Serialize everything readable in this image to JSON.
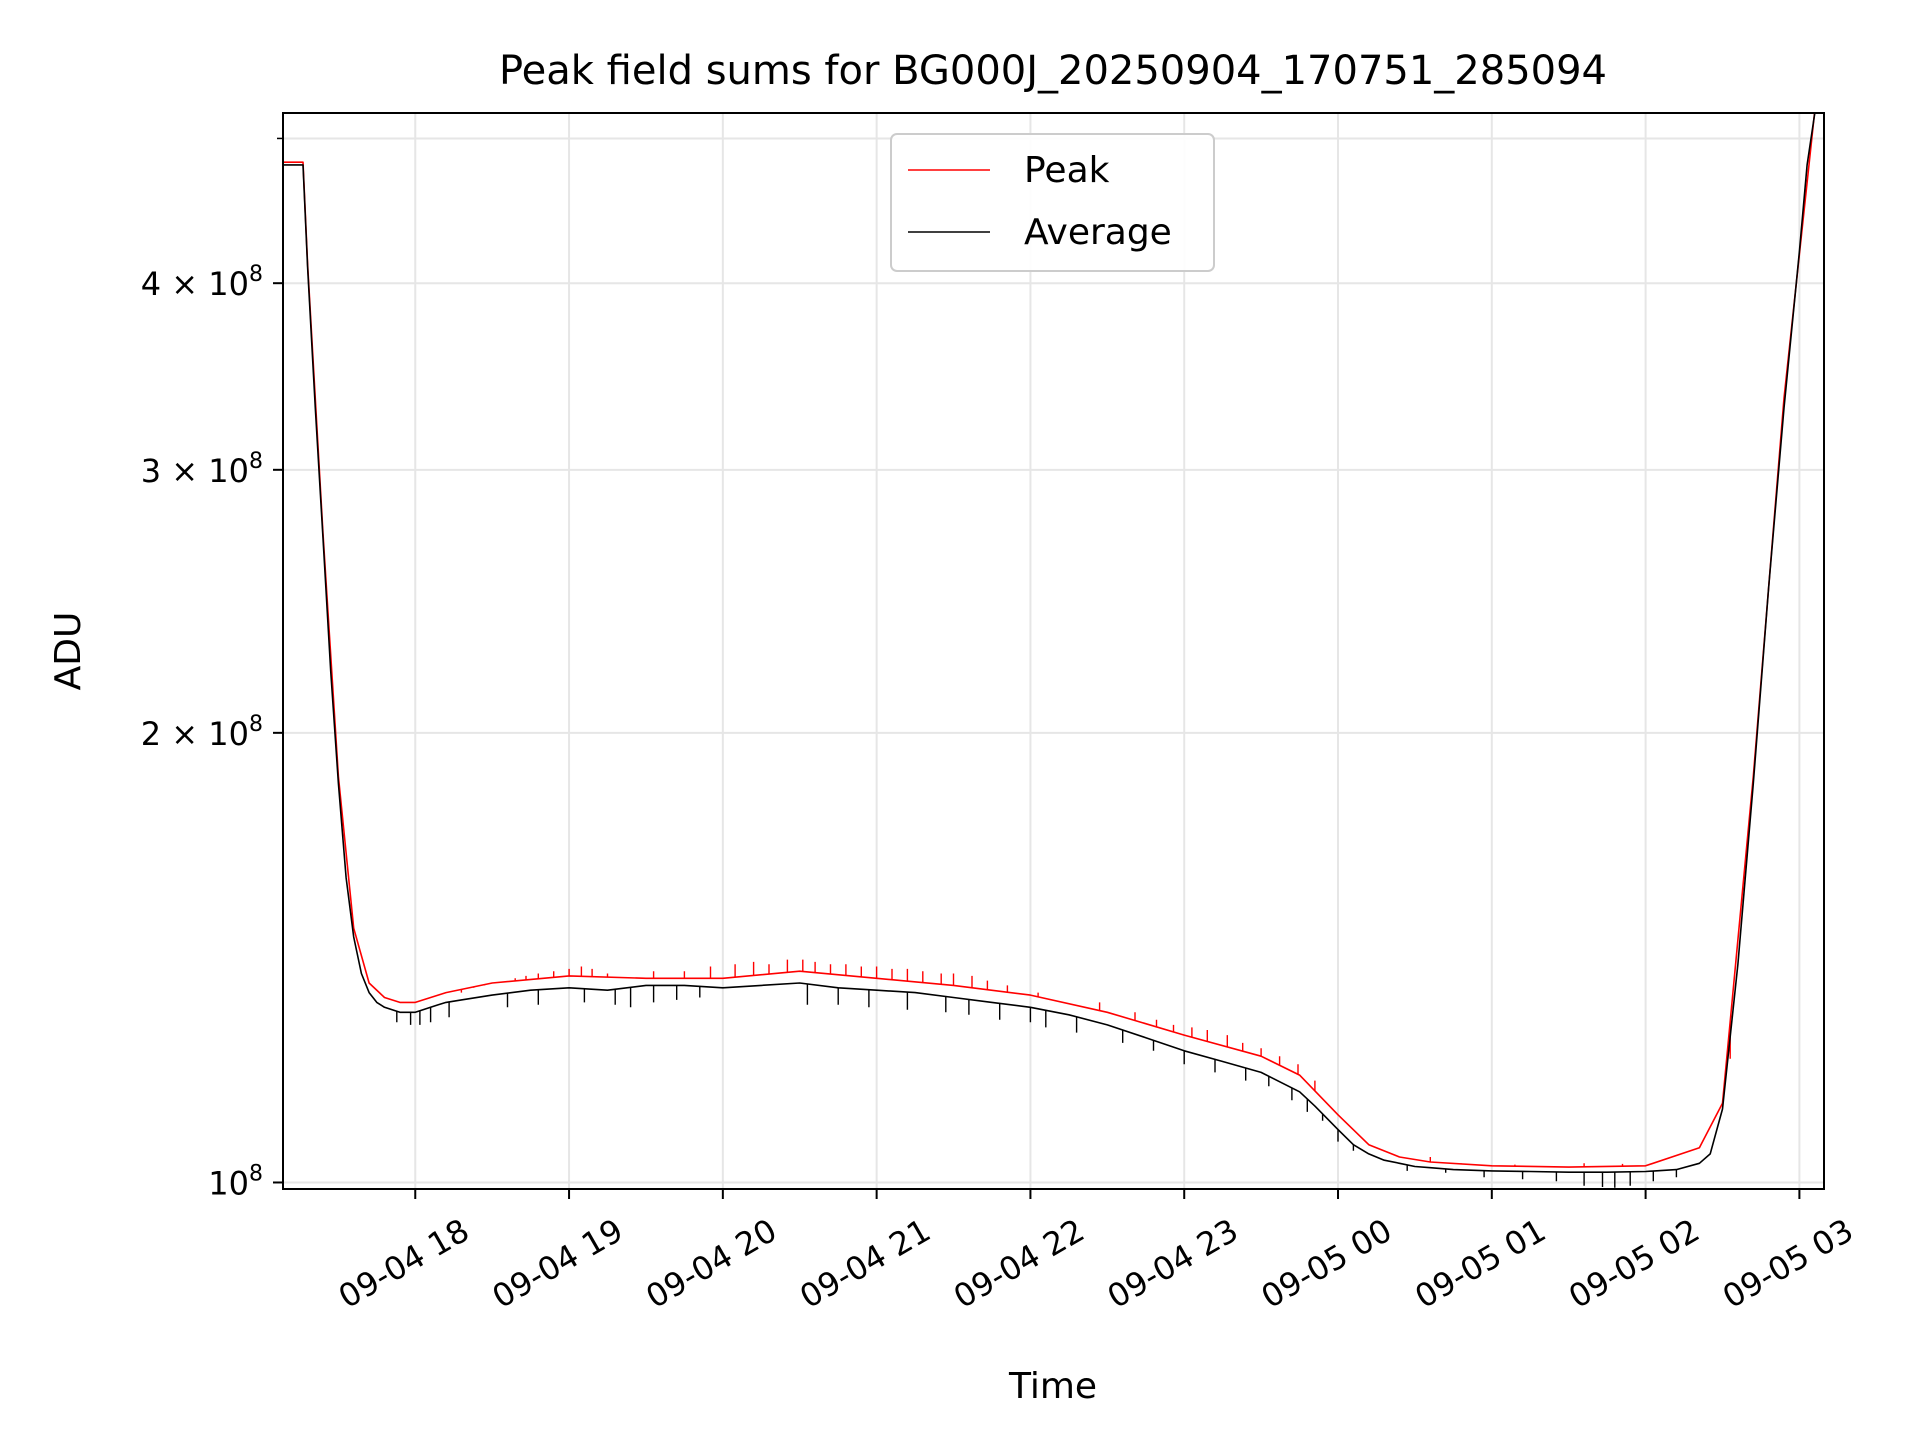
{
  "chart_data": {
    "type": "line",
    "title": "Peak field sums for BG000J_20250904_170751_285094",
    "xlabel": "Time",
    "ylabel": "ADU",
    "yscale": "log",
    "grid": true,
    "legend_placement": "upper-center",
    "xlim_hours": [
      17.14,
      27.16
    ],
    "ylim": [
      99000000,
      520000000
    ],
    "x_ticks": [
      {
        "hour": 18,
        "label": "09-04 18"
      },
      {
        "hour": 19,
        "label": "09-04 19"
      },
      {
        "hour": 20,
        "label": "09-04 20"
      },
      {
        "hour": 21,
        "label": "09-04 21"
      },
      {
        "hour": 22,
        "label": "09-04 22"
      },
      {
        "hour": 23,
        "label": "09-04 23"
      },
      {
        "hour": 24,
        "label": "09-05 00"
      },
      {
        "hour": 25,
        "label": "09-05 01"
      },
      {
        "hour": 26,
        "label": "09-05 02"
      },
      {
        "hour": 27,
        "label": "09-05 03"
      }
    ],
    "y_ticks": [
      {
        "value": 100000000,
        "base": "10",
        "exp": "8"
      },
      {
        "value": 200000000,
        "base": "2 × 10",
        "exp": "8"
      },
      {
        "value": 300000000,
        "base": "3 × 10",
        "exp": "8"
      },
      {
        "value": 400000000,
        "base": "4 × 10",
        "exp": "8"
      }
    ],
    "y_minor_ticks": [
      500000000
    ],
    "series": [
      {
        "name": "Peak",
        "color": "#ff0000"
      },
      {
        "name": "Average",
        "color": "#000000"
      }
    ],
    "average_x_hours": [
      17.14,
      17.2,
      17.27,
      17.3,
      17.35,
      17.4,
      17.45,
      17.5,
      17.55,
      17.6,
      17.65,
      17.7,
      17.75,
      17.8,
      17.85,
      17.9,
      17.95,
      18.0,
      18.05,
      18.1,
      18.15,
      18.2,
      18.3,
      18.5,
      18.75,
      19.0,
      19.25,
      19.5,
      19.75,
      20.0,
      20.25,
      20.5,
      20.75,
      21.0,
      21.25,
      21.5,
      21.75,
      22.0,
      22.25,
      22.5,
      22.75,
      23.0,
      23.25,
      23.5,
      23.75,
      23.85,
      24.0,
      24.1,
      24.2,
      24.3,
      24.4,
      24.5,
      24.6,
      24.75,
      25.0,
      25.25,
      25.5,
      25.75,
      26.0,
      26.2,
      26.35,
      26.42,
      26.5,
      26.6,
      26.7,
      26.8,
      26.9,
      27.0,
      27.05,
      27.1,
      27.16
    ],
    "average_values": [
      480000000,
      480000000,
      480000000,
      410000000,
      330000000,
      270000000,
      220000000,
      185000000,
      160000000,
      146000000,
      138000000,
      134000000,
      132000000,
      131000000,
      130500000,
      130000000,
      130000000,
      130000000,
      130500000,
      131000000,
      131500000,
      132000000,
      132500000,
      133500000,
      134500000,
      135000000,
      134500000,
      135500000,
      135500000,
      135000000,
      135500000,
      136000000,
      135000000,
      134500000,
      134000000,
      133000000,
      132000000,
      131000000,
      129500000,
      127500000,
      125000000,
      122500000,
      120500000,
      118500000,
      115000000,
      112500000,
      108500000,
      106000000,
      104500000,
      103500000,
      103000000,
      102500000,
      102300000,
      102000000,
      101800000,
      101700000,
      101600000,
      101600000,
      101700000,
      102000000,
      103000000,
      104500000,
      112000000,
      140000000,
      185000000,
      250000000,
      330000000,
      420000000,
      480000000,
      520000000,
      520000000
    ],
    "peak_x_hours": [
      17.14,
      17.27,
      17.3,
      17.4,
      17.5,
      17.6,
      17.7,
      17.8,
      17.9,
      18.0,
      18.2,
      18.5,
      19.0,
      19.5,
      20.0,
      20.5,
      21.0,
      21.5,
      22.0,
      22.5,
      23.0,
      23.5,
      23.75,
      24.0,
      24.2,
      24.4,
      24.6,
      25.0,
      25.5,
      26.0,
      26.35,
      26.5,
      26.7,
      26.9,
      27.1,
      27.16
    ],
    "peak_values": [
      482000000,
      482000000,
      412000000,
      272000000,
      187000000,
      148000000,
      136000000,
      133000000,
      132000000,
      132000000,
      134000000,
      136000000,
      137500000,
      137000000,
      137000000,
      138500000,
      137000000,
      135500000,
      133500000,
      130000000,
      125500000,
      121500000,
      118000000,
      111000000,
      106000000,
      104000000,
      103200000,
      102600000,
      102400000,
      102600000,
      105500000,
      113000000,
      187000000,
      335000000,
      522000000,
      522000000
    ],
    "peak_spike_values": [
      [
        18.3,
        134000000
      ],
      [
        18.38,
        135000000
      ],
      [
        18.45,
        135500000
      ],
      [
        18.55,
        136000000
      ],
      [
        18.65,
        137000000
      ],
      [
        18.72,
        137500000
      ],
      [
        18.8,
        138000000
      ],
      [
        18.9,
        138500000
      ],
      [
        19.0,
        139000000
      ],
      [
        19.08,
        139500000
      ],
      [
        19.15,
        139000000
      ],
      [
        19.25,
        138000000
      ],
      [
        19.55,
        138500000
      ],
      [
        19.75,
        138500000
      ],
      [
        19.92,
        139500000
      ],
      [
        20.08,
        140000000
      ],
      [
        20.2,
        140500000
      ],
      [
        20.3,
        140000000
      ],
      [
        20.42,
        141000000
      ],
      [
        20.52,
        141000000
      ],
      [
        20.6,
        140500000
      ],
      [
        20.7,
        140000000
      ],
      [
        20.8,
        140000000
      ],
      [
        20.9,
        139500000
      ],
      [
        21.0,
        139500000
      ],
      [
        21.1,
        139000000
      ],
      [
        21.2,
        139000000
      ],
      [
        21.3,
        138500000
      ],
      [
        21.42,
        138000000
      ],
      [
        21.5,
        138000000
      ],
      [
        21.62,
        137500000
      ],
      [
        21.72,
        136500000
      ],
      [
        21.85,
        135500000
      ],
      [
        22.05,
        134000000
      ],
      [
        22.45,
        132000000
      ],
      [
        22.68,
        130000000
      ],
      [
        22.82,
        128500000
      ],
      [
        22.93,
        127500000
      ],
      [
        23.05,
        127000000
      ],
      [
        23.15,
        126500000
      ],
      [
        23.28,
        125500000
      ],
      [
        23.38,
        124000000
      ],
      [
        23.5,
        123000000
      ],
      [
        23.62,
        121500000
      ],
      [
        23.74,
        120000000
      ],
      [
        23.85,
        117000000
      ],
      [
        24.6,
        104000000
      ],
      [
        24.8,
        103000000
      ],
      [
        25.15,
        102800000
      ],
      [
        25.6,
        103000000
      ],
      [
        25.85,
        102900000
      ],
      [
        26.55,
        121000000
      ]
    ],
    "average_dip_values": [
      [
        17.88,
        128000000
      ],
      [
        17.97,
        127500000
      ],
      [
        18.03,
        127500000
      ],
      [
        18.1,
        128000000
      ],
      [
        18.22,
        129000000
      ],
      [
        18.6,
        131000000
      ],
      [
        18.8,
        131500000
      ],
      [
        19.1,
        132000000
      ],
      [
        19.3,
        131500000
      ],
      [
        19.4,
        131000000
      ],
      [
        19.55,
        132000000
      ],
      [
        19.7,
        132500000
      ],
      [
        19.85,
        133000000
      ],
      [
        20.55,
        131500000
      ],
      [
        20.75,
        131500000
      ],
      [
        20.95,
        131000000
      ],
      [
        21.2,
        130500000
      ],
      [
        21.45,
        130000000
      ],
      [
        21.6,
        129500000
      ],
      [
        21.8,
        128500000
      ],
      [
        22.0,
        128000000
      ],
      [
        22.1,
        127000000
      ],
      [
        22.3,
        126000000
      ],
      [
        22.6,
        124000000
      ],
      [
        22.8,
        122500000
      ],
      [
        23.0,
        120000000
      ],
      [
        23.2,
        118500000
      ],
      [
        23.4,
        117000000
      ],
      [
        23.55,
        116000000
      ],
      [
        23.7,
        113500000
      ],
      [
        23.8,
        111500000
      ],
      [
        23.9,
        110000000
      ],
      [
        24.0,
        106500000
      ],
      [
        24.1,
        105000000
      ],
      [
        24.45,
        101800000
      ],
      [
        24.7,
        101500000
      ],
      [
        24.95,
        100800000
      ],
      [
        25.2,
        100500000
      ],
      [
        25.42,
        100200000
      ],
      [
        25.6,
        99500000
      ],
      [
        25.72,
        99300000
      ],
      [
        25.8,
        99200000
      ],
      [
        25.9,
        99500000
      ],
      [
        26.05,
        100200000
      ],
      [
        26.2,
        100800000
      ]
    ]
  }
}
